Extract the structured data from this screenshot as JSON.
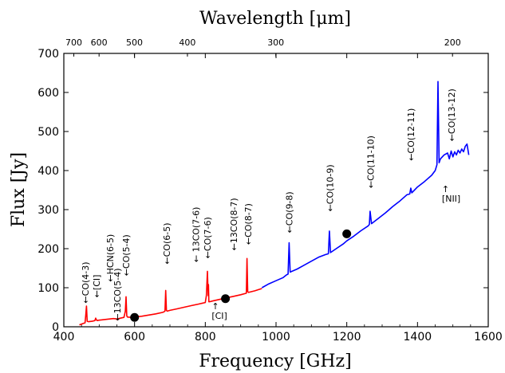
{
  "chart_data": {
    "type": "line",
    "xlabel": "Frequency [GHz]",
    "ylabel": "Flux [Jy]",
    "top_xlabel": "Wavelength [μm]",
    "xlim": [
      400,
      1600
    ],
    "ylim": [
      0,
      700
    ],
    "x_ticks": [
      400,
      600,
      800,
      1000,
      1200,
      1400,
      1600
    ],
    "y_ticks": [
      0,
      100,
      200,
      300,
      400,
      500,
      600,
      700
    ],
    "top_ticks": [
      700,
      600,
      500,
      400,
      300,
      200
    ],
    "series": [
      {
        "name": "",
        "color": "#ff0000",
        "x": [
          444,
          450,
          456,
          460,
          462,
          464,
          466,
          470,
          480,
          488,
          490,
          492,
          494,
          500,
          510,
          520,
          540,
          550,
          551,
          552,
          560,
          570,
          574,
          576,
          578,
          580,
          590,
          600,
          620,
          640,
          660,
          680,
          686,
          688,
          690,
          692,
          700,
          720,
          740,
          760,
          780,
          800,
          803,
          806,
          808,
          809,
          810,
          812,
          820,
          840,
          860,
          880,
          900,
          916,
          918,
          920,
          922,
          940,
          960
        ],
        "y": [
          5,
          7,
          9,
          10,
          30,
          53,
          14,
          13,
          14,
          16,
          22,
          18,
          16,
          17,
          18,
          19,
          21,
          20,
          18,
          20,
          22,
          24,
          40,
          77,
          28,
          25,
          24,
          25,
          27,
          30,
          33,
          37,
          40,
          93,
          42,
          40,
          42,
          46,
          50,
          54,
          58,
          62,
          80,
          142,
          80,
          108,
          64,
          64,
          66,
          70,
          74,
          78,
          82,
          86,
          175,
          90,
          88,
          92,
          98
        ]
      },
      {
        "name": "",
        "color": "#0000ff",
        "x": [
          960,
          980,
          1000,
          1020,
          1030,
          1034,
          1037,
          1040,
          1060,
          1080,
          1100,
          1120,
          1140,
          1148,
          1151,
          1154,
          1170,
          1190,
          1200,
          1220,
          1240,
          1260,
          1264,
          1266,
          1270,
          1290,
          1310,
          1330,
          1350,
          1370,
          1378,
          1381,
          1384,
          1400,
          1420,
          1440,
          1450,
          1455,
          1458,
          1461,
          1465,
          1475,
          1485,
          1490,
          1495,
          1500,
          1505,
          1510,
          1515,
          1520,
          1525,
          1530,
          1535,
          1540,
          1545
        ],
        "y": [
          100,
          110,
          118,
          126,
          133,
          135,
          215,
          140,
          148,
          158,
          168,
          178,
          185,
          187,
          245,
          190,
          200,
          212,
          220,
          232,
          246,
          258,
          262,
          296,
          264,
          278,
          292,
          308,
          322,
          338,
          340,
          355,
          343,
          358,
          372,
          388,
          400,
          415,
          628,
          420,
          430,
          440,
          445,
          430,
          450,
          435,
          448,
          440,
          452,
          445,
          455,
          448,
          462,
          468,
          440
        ]
      }
    ],
    "markers": {
      "color": "#000000",
      "x": [
        600,
        857,
        1200
      ],
      "y": [
        24,
        72,
        238
      ]
    },
    "annotations": [
      {
        "text": "←CO(4-3)",
        "x": 461,
        "y": 60,
        "direction": "vertical"
      },
      {
        "text": "←[CI]",
        "x": 492,
        "y": 75,
        "direction": "vertical"
      },
      {
        "text": "←13CO(5-4)",
        "x": 551,
        "y": 15,
        "direction": "vertical"
      },
      {
        "text": "←HCN(6-5)",
        "x": 531,
        "y": 115,
        "direction": "vertical"
      },
      {
        "text": "←CO(5-4)",
        "x": 576,
        "y": 130,
        "direction": "vertical"
      },
      {
        "text": "←CO(6-5)",
        "x": 691,
        "y": 160,
        "direction": "vertical"
      },
      {
        "text": "← 13CO(7-6)",
        "x": 773,
        "y": 165,
        "direction": "vertical"
      },
      {
        "text": "←CO(7-6)",
        "x": 806,
        "y": 175,
        "direction": "vertical"
      },
      {
        "text": "←13CO(8-7)",
        "x": 880,
        "y": 195,
        "direction": "vertical"
      },
      {
        "text": "←CO(8-7)",
        "x": 921,
        "y": 210,
        "direction": "vertical"
      },
      {
        "text": "←CO(9-8)",
        "x": 1037,
        "y": 240,
        "direction": "vertical"
      },
      {
        "text": "←CO(10-9)",
        "x": 1152,
        "y": 295,
        "direction": "vertical"
      },
      {
        "text": "←CO(11-10)",
        "x": 1267,
        "y": 355,
        "direction": "vertical"
      },
      {
        "text": "←CO(12-11)",
        "x": 1381,
        "y": 425,
        "direction": "vertical"
      },
      {
        "text": "←CO(13-12)",
        "x": 1496,
        "y": 475,
        "direction": "vertical"
      },
      {
        "text": "[CI]",
        "x": 818,
        "y": 20,
        "direction": "horizontal",
        "arrow": "↑"
      },
      {
        "text": "[NII]",
        "x": 1469,
        "y": 320,
        "direction": "horizontal",
        "arrow": "↑"
      }
    ]
  }
}
